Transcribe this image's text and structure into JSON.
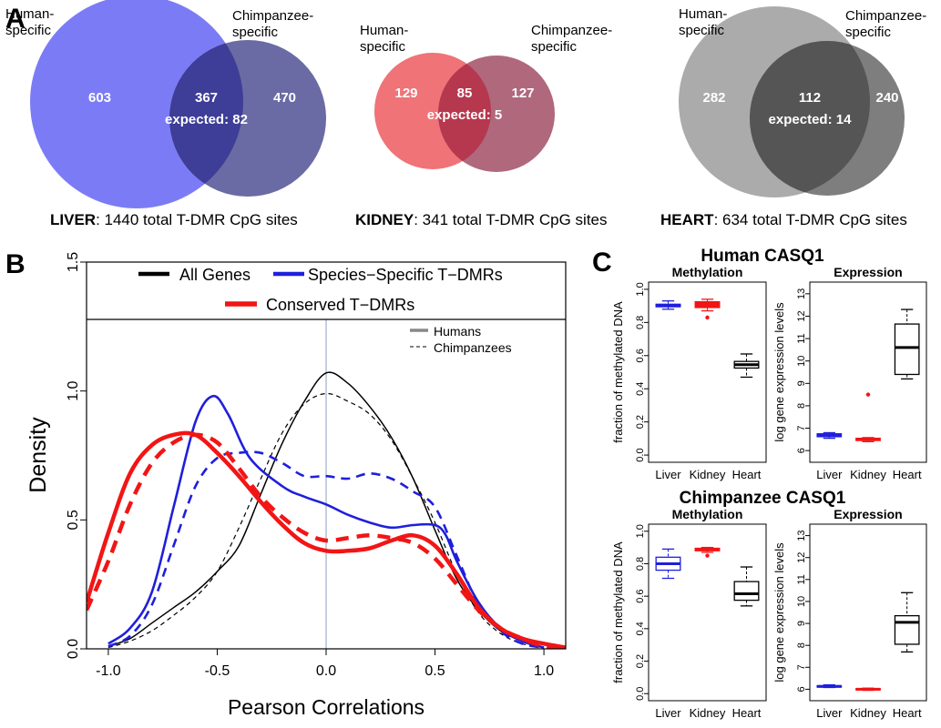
{
  "panel_labels": {
    "a": "A",
    "b": "B",
    "c": "C"
  },
  "venn_common": {
    "left_label": "Human-\nspecific",
    "right_label": "Chimpanzee-\nspecific"
  },
  "venns": [
    {
      "tissue": "LIVER",
      "caption_rest": ": 1440 total T-DMR CpG sites",
      "human": "603",
      "overlap": "367",
      "chimp": "470",
      "expected": "expected: 82",
      "colors": {
        "left": "#7b7cf5",
        "right": "#6a6ba4",
        "overlap": "#3e3d97"
      }
    },
    {
      "tissue": "KIDNEY",
      "caption_rest": ": 341 total T-DMR CpG sites",
      "human": "129",
      "overlap": "85",
      "chimp": "127",
      "expected": "expected: 5",
      "colors": {
        "left": "#ef7377",
        "right": "#b0687d",
        "overlap": "#b5384f"
      }
    },
    {
      "tissue": "HEART",
      "caption_rest": ": 634 total T-DMR CpG sites",
      "human": "282",
      "overlap": "112",
      "chimp": "240",
      "expected": "expected: 14",
      "colors": {
        "left": "#ababab",
        "right": "#7e7e7e",
        "overlap": "#555555"
      }
    }
  ],
  "chart_data": [
    {
      "panel": "B",
      "type": "line",
      "xlabel": "Pearson Correlations",
      "ylabel": "Density",
      "xlim": [
        -1.1,
        1.1
      ],
      "ylim": [
        0,
        1.5
      ],
      "xticks": [
        "-1.0",
        "-0.5",
        "0.0",
        "0.5",
        "1.0"
      ],
      "yticks": [
        "0.0",
        "0.5",
        "1.0",
        "1.5"
      ],
      "legend": {
        "placement": "top",
        "entries": [
          "All Genes",
          "Species−Specific T−DMRs",
          "Conserved T−DMRs"
        ],
        "line_types": [
          "Humans",
          "Chimpanzees"
        ]
      },
      "reference_line_x": 0,
      "series": [
        {
          "group": "All Genes",
          "species": "Humans",
          "color": "#000000",
          "width": 1.5,
          "dash": "",
          "points": [
            [
              -1.0,
              0.01
            ],
            [
              -0.9,
              0.04
            ],
            [
              -0.8,
              0.1
            ],
            [
              -0.7,
              0.16
            ],
            [
              -0.6,
              0.22
            ],
            [
              -0.5,
              0.3
            ],
            [
              -0.4,
              0.4
            ],
            [
              -0.3,
              0.6
            ],
            [
              -0.2,
              0.8
            ],
            [
              -0.1,
              0.96
            ],
            [
              0.0,
              1.07
            ],
            [
              0.1,
              1.03
            ],
            [
              0.2,
              0.94
            ],
            [
              0.3,
              0.82
            ],
            [
              0.4,
              0.66
            ],
            [
              0.5,
              0.46
            ],
            [
              0.6,
              0.27
            ],
            [
              0.7,
              0.15
            ],
            [
              0.8,
              0.07
            ],
            [
              0.9,
              0.03
            ],
            [
              1.0,
              0.005
            ]
          ]
        },
        {
          "group": "All Genes",
          "species": "Chimpanzees",
          "color": "#000000",
          "width": 1.2,
          "dash": "5,4",
          "points": [
            [
              -1.0,
              0.005
            ],
            [
              -0.9,
              0.03
            ],
            [
              -0.8,
              0.07
            ],
            [
              -0.7,
              0.13
            ],
            [
              -0.6,
              0.2
            ],
            [
              -0.5,
              0.3
            ],
            [
              -0.4,
              0.47
            ],
            [
              -0.3,
              0.66
            ],
            [
              -0.2,
              0.84
            ],
            [
              -0.1,
              0.95
            ],
            [
              0.0,
              0.99
            ],
            [
              0.1,
              0.96
            ],
            [
              0.2,
              0.91
            ],
            [
              0.3,
              0.81
            ],
            [
              0.4,
              0.66
            ],
            [
              0.5,
              0.49
            ],
            [
              0.6,
              0.29
            ],
            [
              0.7,
              0.14
            ],
            [
              0.8,
              0.06
            ],
            [
              0.9,
              0.02
            ],
            [
              1.0,
              0.005
            ]
          ]
        },
        {
          "group": "Species−Specific T−DMRs",
          "species": "Humans",
          "color": "#1f1fdb",
          "width": 2.6,
          "dash": "",
          "points": [
            [
              -1.0,
              0.02
            ],
            [
              -0.9,
              0.08
            ],
            [
              -0.8,
              0.22
            ],
            [
              -0.7,
              0.55
            ],
            [
              -0.6,
              0.88
            ],
            [
              -0.52,
              0.98
            ],
            [
              -0.45,
              0.91
            ],
            [
              -0.35,
              0.74
            ],
            [
              -0.2,
              0.63
            ],
            [
              -0.1,
              0.59
            ],
            [
              0.0,
              0.56
            ],
            [
              0.1,
              0.52
            ],
            [
              0.2,
              0.49
            ],
            [
              0.3,
              0.47
            ],
            [
              0.4,
              0.48
            ],
            [
              0.5,
              0.48
            ],
            [
              0.55,
              0.44
            ],
            [
              0.6,
              0.34
            ],
            [
              0.7,
              0.18
            ],
            [
              0.8,
              0.08
            ],
            [
              0.9,
              0.03
            ],
            [
              1.0,
              0.005
            ]
          ]
        },
        {
          "group": "Species−Specific T−DMRs",
          "species": "Chimpanzees",
          "color": "#1f1fdb",
          "width": 2.6,
          "dash": "10,7",
          "points": [
            [
              -1.0,
              0.01
            ],
            [
              -0.9,
              0.05
            ],
            [
              -0.8,
              0.17
            ],
            [
              -0.7,
              0.4
            ],
            [
              -0.6,
              0.63
            ],
            [
              -0.5,
              0.74
            ],
            [
              -0.4,
              0.76
            ],
            [
              -0.3,
              0.76
            ],
            [
              -0.2,
              0.72
            ],
            [
              -0.1,
              0.67
            ],
            [
              0.0,
              0.67
            ],
            [
              0.1,
              0.66
            ],
            [
              0.2,
              0.68
            ],
            [
              0.3,
              0.66
            ],
            [
              0.4,
              0.61
            ],
            [
              0.5,
              0.55
            ],
            [
              0.6,
              0.36
            ],
            [
              0.7,
              0.17
            ],
            [
              0.8,
              0.07
            ],
            [
              0.9,
              0.02
            ],
            [
              1.0,
              0.005
            ]
          ]
        },
        {
          "group": "Conserved T−DMRs",
          "species": "Humans",
          "color": "#f21515",
          "width": 4.5,
          "dash": "",
          "points": [
            [
              -1.1,
              0.18
            ],
            [
              -1.0,
              0.45
            ],
            [
              -0.9,
              0.68
            ],
            [
              -0.8,
              0.79
            ],
            [
              -0.7,
              0.83
            ],
            [
              -0.6,
              0.83
            ],
            [
              -0.5,
              0.76
            ],
            [
              -0.4,
              0.67
            ],
            [
              -0.3,
              0.57
            ],
            [
              -0.2,
              0.48
            ],
            [
              -0.1,
              0.41
            ],
            [
              0.0,
              0.38
            ],
            [
              0.1,
              0.38
            ],
            [
              0.2,
              0.39
            ],
            [
              0.3,
              0.42
            ],
            [
              0.4,
              0.44
            ],
            [
              0.5,
              0.4
            ],
            [
              0.6,
              0.29
            ],
            [
              0.7,
              0.16
            ],
            [
              0.8,
              0.08
            ],
            [
              0.9,
              0.04
            ],
            [
              1.0,
              0.02
            ],
            [
              1.1,
              0.005
            ]
          ]
        },
        {
          "group": "Conserved T−DMRs",
          "species": "Chimpanzees",
          "color": "#f21515",
          "width": 4.5,
          "dash": "14,9",
          "points": [
            [
              -1.1,
              0.15
            ],
            [
              -1.0,
              0.34
            ],
            [
              -0.9,
              0.56
            ],
            [
              -0.8,
              0.72
            ],
            [
              -0.7,
              0.8
            ],
            [
              -0.6,
              0.83
            ],
            [
              -0.5,
              0.8
            ],
            [
              -0.4,
              0.7
            ],
            [
              -0.3,
              0.59
            ],
            [
              -0.2,
              0.51
            ],
            [
              -0.1,
              0.45
            ],
            [
              0.0,
              0.42
            ],
            [
              0.1,
              0.43
            ],
            [
              0.2,
              0.44
            ],
            [
              0.3,
              0.43
            ],
            [
              0.4,
              0.41
            ],
            [
              0.5,
              0.35
            ],
            [
              0.6,
              0.25
            ],
            [
              0.7,
              0.15
            ],
            [
              0.8,
              0.08
            ],
            [
              0.9,
              0.04
            ],
            [
              1.0,
              0.01
            ],
            [
              1.1,
              0.003
            ]
          ]
        }
      ]
    },
    {
      "panel": "C",
      "type": "boxplot",
      "group_title": "Human CASQ1",
      "subtitle": "Methylation",
      "ylabel": "fraction of methylated DNA",
      "ylim": [
        0,
        1
      ],
      "yticks": [
        "0.0",
        "0.2",
        "0.4",
        "0.6",
        "0.8",
        "1.0"
      ],
      "categories": [
        "Liver",
        "Kidney",
        "Heart"
      ],
      "boxes": [
        {
          "category": "Liver",
          "color": "#1f1fdb",
          "fill": "#1f1fdb",
          "min": 0.88,
          "q1": 0.895,
          "median": 0.9,
          "q3": 0.91,
          "max": 0.93,
          "outliers": []
        },
        {
          "category": "Kidney",
          "color": "#f21515",
          "fill": "#f21515",
          "min": 0.87,
          "q1": 0.89,
          "median": 0.905,
          "q3": 0.925,
          "max": 0.94,
          "outliers": [
            0.83
          ]
        },
        {
          "category": "Heart",
          "color": "#000000",
          "fill": "none",
          "min": 0.47,
          "q1": 0.525,
          "median": 0.545,
          "q3": 0.565,
          "max": 0.61,
          "outliers": []
        }
      ]
    },
    {
      "panel": "C",
      "type": "boxplot",
      "group_title": "Human CASQ1",
      "subtitle": "Expression",
      "ylabel": "log gene expression levels",
      "ylim": [
        5.8,
        13.2
      ],
      "yticks": [
        "6",
        "7",
        "8",
        "9",
        "10",
        "11",
        "12",
        "13"
      ],
      "categories": [
        "Liver",
        "Kidney",
        "Heart"
      ],
      "boxes": [
        {
          "category": "Liver",
          "color": "#1f1fdb",
          "fill": "#1f1fdb",
          "min": 6.55,
          "q1": 6.62,
          "median": 6.68,
          "q3": 6.75,
          "max": 6.8,
          "outliers": []
        },
        {
          "category": "Kidney",
          "color": "#f21515",
          "fill": "#f21515",
          "min": 6.4,
          "q1": 6.45,
          "median": 6.5,
          "q3": 6.55,
          "max": 6.58,
          "outliers": [
            8.5
          ]
        },
        {
          "category": "Heart",
          "color": "#000000",
          "fill": "none",
          "min": 9.2,
          "q1": 9.4,
          "median": 10.6,
          "q3": 11.65,
          "max": 12.3,
          "outliers": []
        }
      ]
    },
    {
      "panel": "C",
      "type": "boxplot",
      "group_title": "Chimpanzee CASQ1",
      "subtitle": "Methylation",
      "ylabel": "fraction of methylated DNA",
      "ylim": [
        0,
        1
      ],
      "yticks": [
        "0.0",
        "0.2",
        "0.4",
        "0.6",
        "0.8",
        "1.0"
      ],
      "categories": [
        "Liver",
        "Kidney",
        "Heart"
      ],
      "boxes": [
        {
          "category": "Liver",
          "color": "#1f1fdb",
          "fill": "none",
          "min": 0.71,
          "q1": 0.76,
          "median": 0.8,
          "q3": 0.84,
          "max": 0.89,
          "outliers": []
        },
        {
          "category": "Kidney",
          "color": "#f21515",
          "fill": "#f21515",
          "min": 0.87,
          "q1": 0.88,
          "median": 0.885,
          "q3": 0.895,
          "max": 0.9,
          "outliers": [
            0.85
          ]
        },
        {
          "category": "Heart",
          "color": "#000000",
          "fill": "none",
          "min": 0.54,
          "q1": 0.575,
          "median": 0.615,
          "q3": 0.69,
          "max": 0.78,
          "outliers": []
        }
      ]
    },
    {
      "panel": "C",
      "type": "boxplot",
      "group_title": "Chimpanzee CASQ1",
      "subtitle": "Expression",
      "ylabel": "log gene expression levels",
      "ylim": [
        5.8,
        13.2
      ],
      "yticks": [
        "6",
        "7",
        "8",
        "9",
        "10",
        "11",
        "12",
        "13"
      ],
      "categories": [
        "Liver",
        "Kidney",
        "Heart"
      ],
      "boxes": [
        {
          "category": "Liver",
          "color": "#1f1fdb",
          "fill": "#1f1fdb",
          "min": 6.08,
          "q1": 6.1,
          "median": 6.13,
          "q3": 6.16,
          "max": 6.2,
          "outliers": []
        },
        {
          "category": "Kidney",
          "color": "#f21515",
          "fill": "#f21515",
          "min": 5.95,
          "q1": 5.97,
          "median": 6.0,
          "q3": 6.03,
          "max": 6.05,
          "outliers": []
        },
        {
          "category": "Heart",
          "color": "#000000",
          "fill": "none",
          "min": 7.7,
          "q1": 8.05,
          "median": 9.05,
          "q3": 9.35,
          "max": 10.4,
          "outliers": []
        }
      ]
    }
  ]
}
